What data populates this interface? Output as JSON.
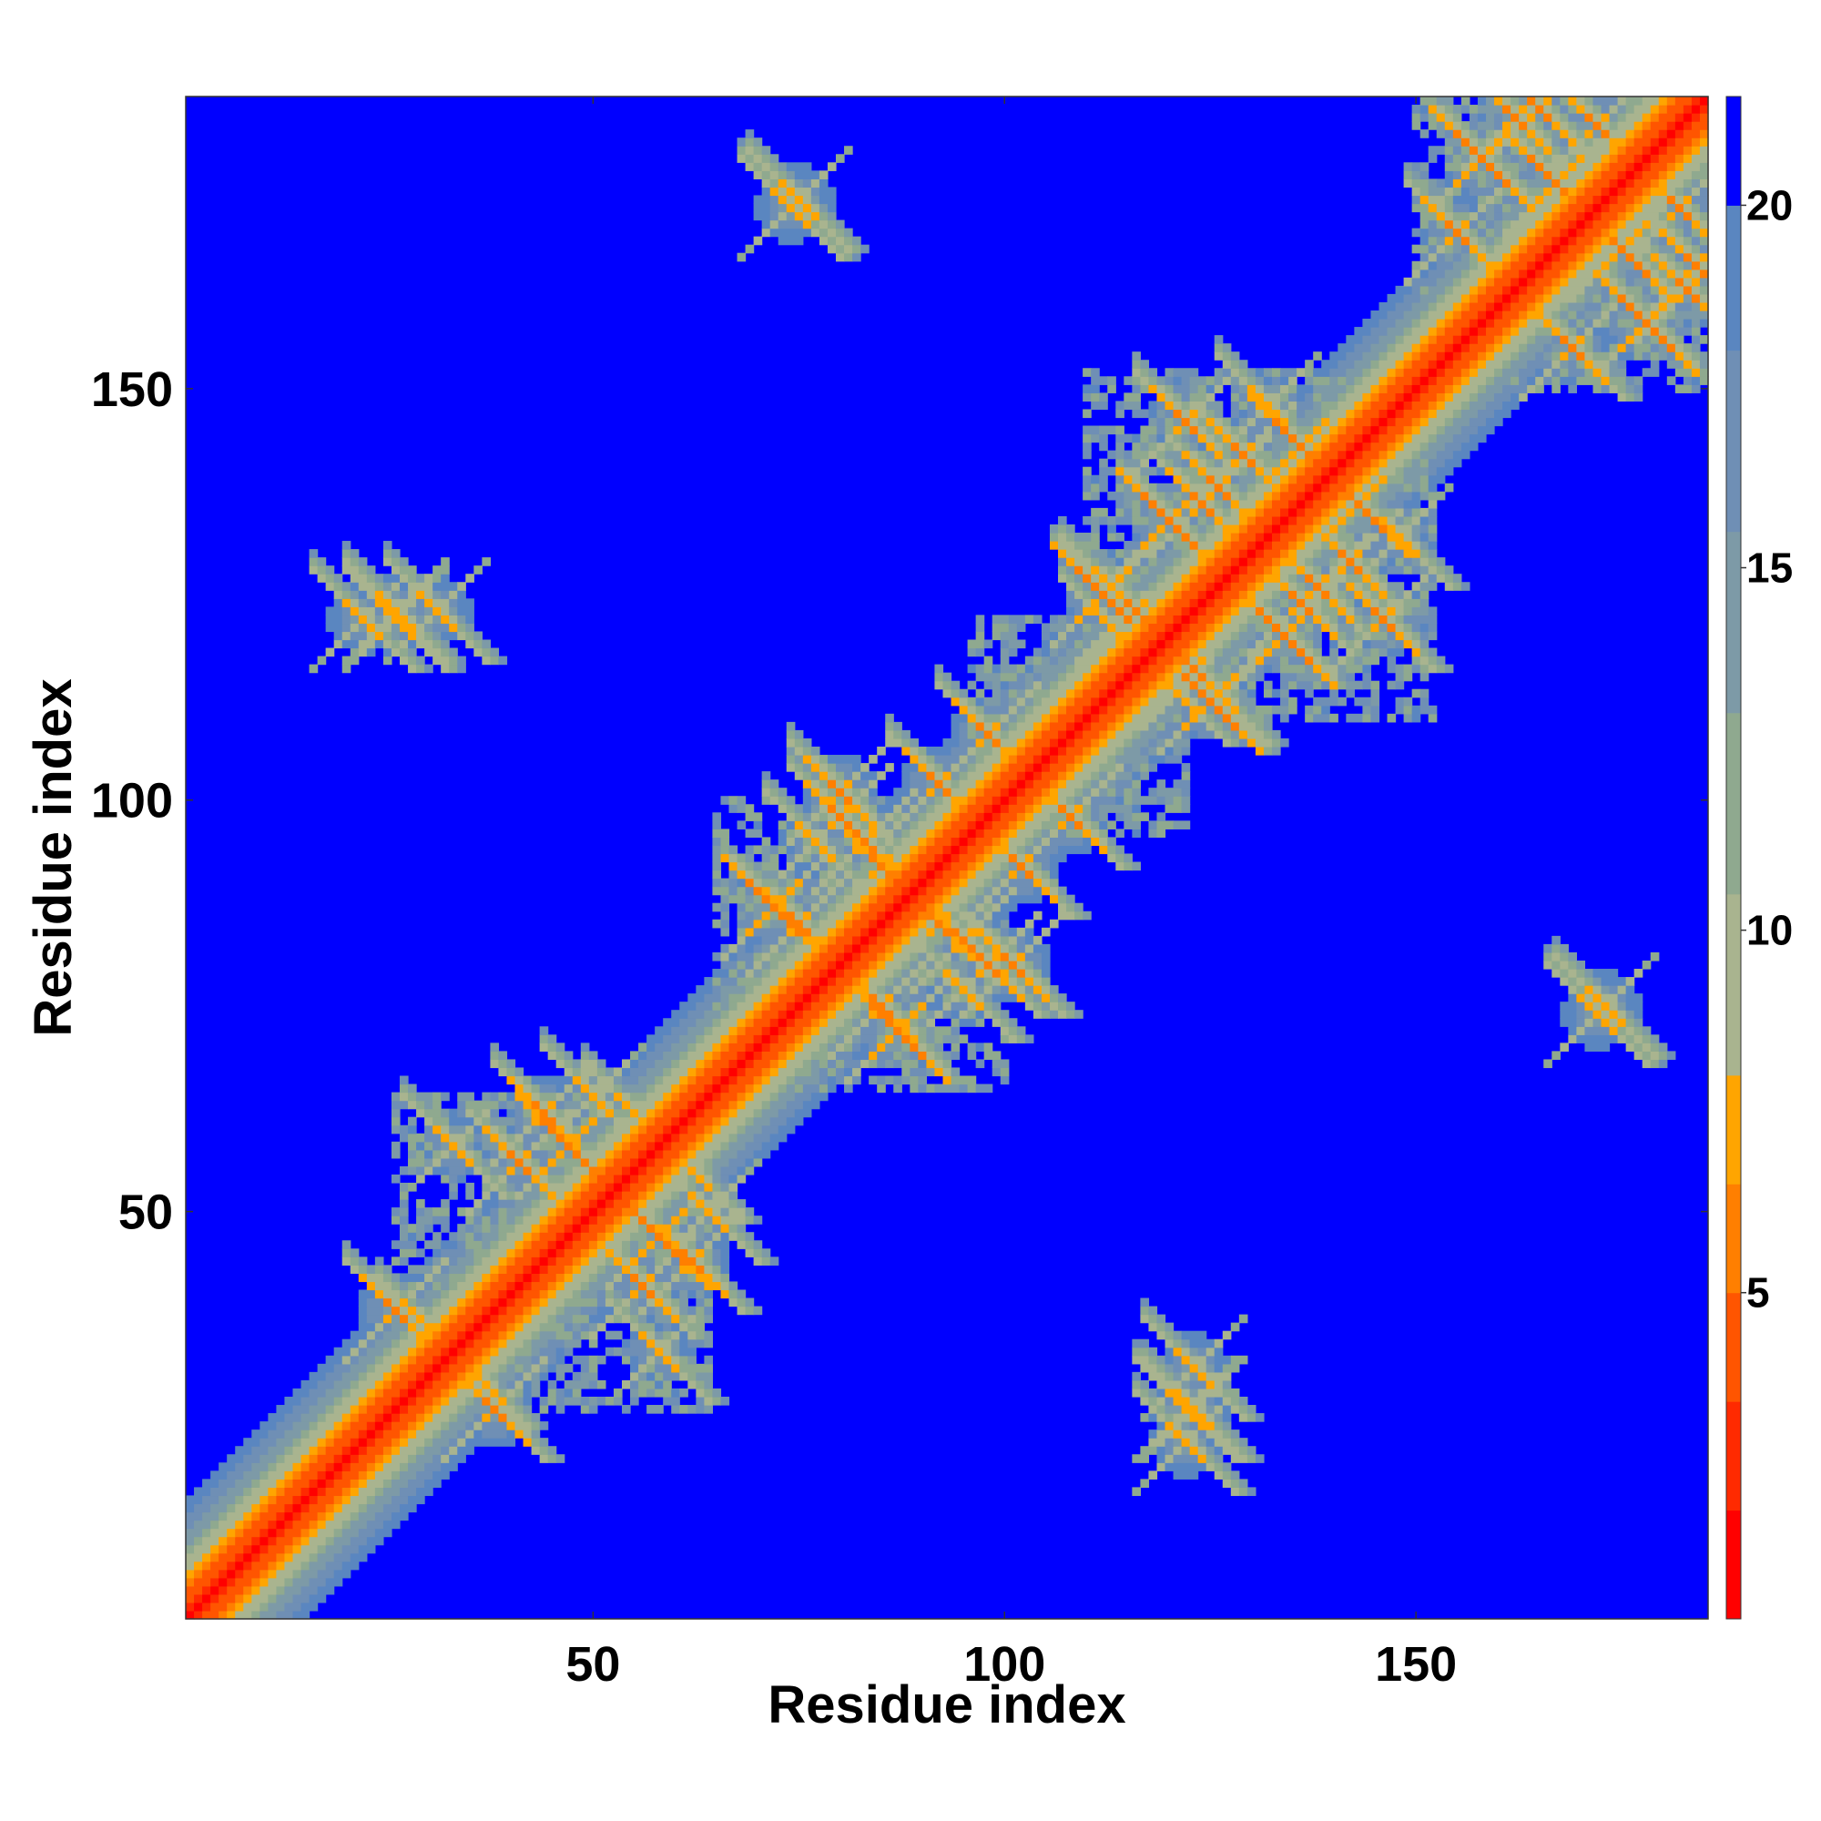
{
  "chart_data": {
    "type": "heatmap",
    "title": "",
    "xlabel": "Residue index",
    "ylabel": "Residue index",
    "n_residues": 185,
    "xlim": [
      1,
      185
    ],
    "ylim": [
      1,
      185
    ],
    "x_ticks": [
      50,
      100,
      150
    ],
    "y_ticks": [
      50,
      100,
      150
    ],
    "colorbar": {
      "ticks": [
        5,
        10,
        15,
        20
      ],
      "range": [
        0.5,
        21.5
      ],
      "levels": [
        {
          "min": 0.5,
          "max": 2.0,
          "color": "#ff0000"
        },
        {
          "min": 2.0,
          "max": 3.5,
          "color": "#ff2a00"
        },
        {
          "min": 3.5,
          "max": 5.0,
          "color": "#ff5500"
        },
        {
          "min": 5.0,
          "max": 6.5,
          "color": "#ff7f00"
        },
        {
          "min": 6.5,
          "max": 8.0,
          "color": "#ffa500"
        },
        {
          "min": 8.0,
          "max": 10.5,
          "color": "#a9b48f"
        },
        {
          "min": 10.5,
          "max": 13.0,
          "color": "#8fa98f"
        },
        {
          "min": 13.0,
          "max": 15.5,
          "color": "#7d9aa7"
        },
        {
          "min": 15.5,
          "max": 18.0,
          "color": "#6f8fb5"
        },
        {
          "min": 18.0,
          "max": 20.0,
          "color": "#5a86c0"
        },
        {
          "min": 20.0,
          "max": 21.5,
          "color": "#0000ff"
        }
      ]
    },
    "background_value": 21,
    "blocks": [
      {
        "lo": 26,
        "hi": 64
      },
      {
        "lo": 65,
        "hi": 100
      },
      {
        "lo": 96,
        "hi": 122
      },
      {
        "lo": 110,
        "hi": 152
      },
      {
        "lo": 150,
        "hi": 185
      }
    ],
    "contact_features": [
      {
        "i": 44,
        "j": 62,
        "dist": 6
      },
      {
        "i": 47,
        "j": 58,
        "dist": 5
      },
      {
        "i": 41,
        "j": 56,
        "dist": 6
      },
      {
        "i": 50,
        "j": 64,
        "dist": 7
      },
      {
        "i": 26,
        "j": 38,
        "dist": 6
      },
      {
        "i": 30,
        "j": 36,
        "dist": 7
      },
      {
        "i": 33,
        "j": 58,
        "dist": 7
      },
      {
        "i": 55,
        "j": 62,
        "dist": 7
      },
      {
        "i": 72,
        "j": 87,
        "dist": 5
      },
      {
        "i": 75,
        "j": 85,
        "dist": 6
      },
      {
        "i": 80,
        "j": 101,
        "dist": 6
      },
      {
        "i": 83,
        "j": 95,
        "dist": 6
      },
      {
        "i": 92,
        "j": 102,
        "dist": 6
      },
      {
        "i": 85,
        "j": 92,
        "dist": 6
      },
      {
        "i": 95,
        "j": 77,
        "dist": 7
      },
      {
        "i": 98,
        "j": 80,
        "dist": 6
      },
      {
        "i": 108,
        "j": 98,
        "dist": 6
      },
      {
        "i": 112,
        "j": 125,
        "dist": 5
      },
      {
        "i": 116,
        "j": 123,
        "dist": 6
      },
      {
        "i": 120,
        "j": 134,
        "dist": 5
      },
      {
        "i": 126,
        "j": 138,
        "dist": 6
      },
      {
        "i": 129,
        "j": 142,
        "dist": 6
      },
      {
        "i": 136,
        "j": 143,
        "dist": 5
      },
      {
        "i": 122,
        "j": 146,
        "dist": 6
      },
      {
        "i": 132,
        "j": 148,
        "dist": 7
      },
      {
        "i": 158,
        "j": 178,
        "dist": 5
      },
      {
        "i": 162,
        "j": 183,
        "dist": 6
      },
      {
        "i": 167,
        "j": 175,
        "dist": 5
      },
      {
        "i": 165,
        "j": 184,
        "dist": 6
      },
      {
        "i": 172,
        "j": 182,
        "dist": 6
      },
      {
        "i": 155,
        "j": 169,
        "dist": 6
      },
      {
        "i": 22,
        "j": 122,
        "dist": 7
      },
      {
        "i": 26,
        "j": 122,
        "dist": 7
      },
      {
        "i": 75,
        "j": 173,
        "dist": 7
      },
      {
        "i": 123,
        "j": 26,
        "dist": 7
      },
      {
        "i": 123,
        "j": 31,
        "dist": 7
      },
      {
        "i": 172,
        "j": 74,
        "dist": 7
      },
      {
        "i": 113,
        "j": 121,
        "dist": 7
      },
      {
        "i": 113,
        "j": 126,
        "dist": 7
      },
      {
        "i": 124,
        "j": 136,
        "dist": 6
      }
    ]
  }
}
